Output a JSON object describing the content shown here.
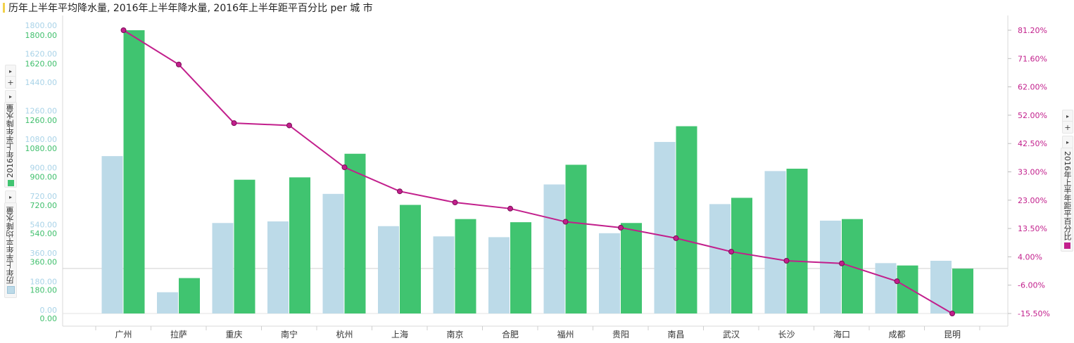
{
  "title": "历年上半年平均降水量, 2016年上半年降水量, 2016年上半年距平百分比 per 城 市",
  "axis_labels": {
    "left_outer": "历年上半年平均降水量",
    "left_inner": "2016年上半年降水量",
    "right": "2016年上半年距平百分比"
  },
  "controls": {
    "expand_glyph": "▸",
    "add_glyph": "+"
  },
  "colors": {
    "avg": "#bcdae8",
    "y2016": "#40c470",
    "pct": "#c21f8c",
    "avg_tick": "#a9d3e8",
    "y2016_tick": "#3fbf6c",
    "pct_tick": "#c21f8c",
    "title_accent": "#f2d14b"
  },
  "chart_data": {
    "type": "bar",
    "title": "历年上半年平均降水量, 2016年上半年降水量, 2016年上半年距平百分比 per 城 市",
    "categories": [
      "广州",
      "拉萨",
      "重庆",
      "南宁",
      "杭州",
      "上海",
      "南京",
      "合肥",
      "福州",
      "贵阳",
      "南昌",
      "武汉",
      "长沙",
      "海口",
      "成都",
      "昆明"
    ],
    "series": [
      {
        "name": "历年上半年平均降水量",
        "type": "bar",
        "axis": "left_outer",
        "values": [
          1000,
          135,
          575,
          585,
          760,
          555,
          490,
          485,
          820,
          510,
          1090,
          695,
          905,
          590,
          320,
          335
        ]
      },
      {
        "name": "2016年上半年降水量",
        "type": "bar",
        "axis": "left_inner",
        "values": [
          1800,
          225,
          850,
          865,
          1015,
          690,
          600,
          580,
          945,
          575,
          1190,
          735,
          920,
          600,
          305,
          285
        ]
      },
      {
        "name": "2016年上半年距平百分比",
        "type": "line",
        "axis": "right",
        "values": [
          81.2,
          69.5,
          49.5,
          48.7,
          34.4,
          26.2,
          22.4,
          20.3,
          15.8,
          13.8,
          10.2,
          5.6,
          2.5,
          1.6,
          -4.5,
          -15.5
        ]
      }
    ],
    "axes": {
      "left_outer": {
        "ticks": [
          "0.00",
          "180.00",
          "360.00",
          "540.00",
          "720.00",
          "900.00",
          "1080.00",
          "1260.00",
          "1440.00",
          "1620.00",
          "1800.00"
        ],
        "min": 0,
        "max": 1800
      },
      "left_inner": {
        "ticks": [
          "0.00",
          "180.00",
          "360.00",
          "540.00",
          "720.00",
          "900.00",
          "1080.00",
          "1260.00",
          "1620.00",
          "1800.00"
        ],
        "tick_values": [
          0,
          180,
          360,
          540,
          720,
          900,
          1080,
          1260,
          1620,
          1800
        ],
        "min": 0,
        "max": 1800
      },
      "right": {
        "ticks": [
          "-15.50%",
          "-6.00%",
          "4.00%",
          "13.50%",
          "23.00%",
          "33.00%",
          "42.50%",
          "52.00%",
          "62.00%",
          "71.60%",
          "81.20%"
        ],
        "min": -15.5,
        "max": 81.2
      }
    }
  }
}
